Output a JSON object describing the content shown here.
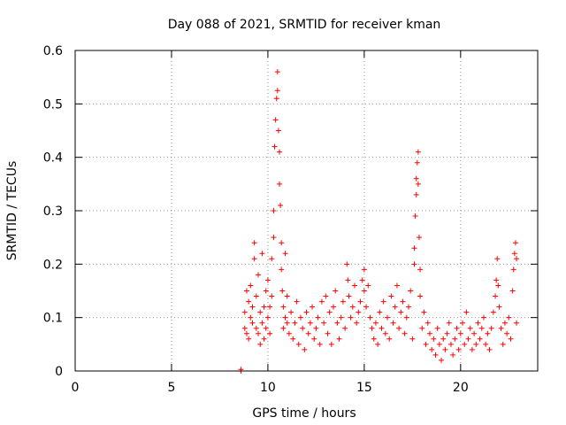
{
  "chart_data": {
    "type": "scatter",
    "title": "Day 088 of 2021, SRMTID for receiver kman",
    "xlabel": "GPS time / hours",
    "ylabel": "SRMTID / TECUs",
    "xlim": [
      0,
      24
    ],
    "ylim": [
      0,
      0.6
    ],
    "x_ticks": [
      0,
      5,
      10,
      15,
      20
    ],
    "x_tick_labels": [
      "0",
      "5",
      "10",
      "15",
      "20"
    ],
    "y_ticks": [
      0,
      0.1,
      0.2,
      0.3,
      0.4,
      0.5,
      0.6
    ],
    "y_tick_labels": [
      "0",
      "0.1",
      "0.2",
      "0.3",
      "0.4",
      "0.5",
      "0.6"
    ],
    "grid": true,
    "marker": "+",
    "series": [
      {
        "name": "SRMTID",
        "color": "#ff0000",
        "points": [
          [
            8.6,
            0.0
          ],
          [
            8.6,
            0.003
          ],
          [
            8.8,
            0.08
          ],
          [
            8.8,
            0.11
          ],
          [
            8.9,
            0.15
          ],
          [
            8.9,
            0.07
          ],
          [
            9.0,
            0.13
          ],
          [
            9.0,
            0.06
          ],
          [
            9.1,
            0.1
          ],
          [
            9.1,
            0.16
          ],
          [
            9.2,
            0.09
          ],
          [
            9.2,
            0.12
          ],
          [
            9.3,
            0.24
          ],
          [
            9.3,
            0.21
          ],
          [
            9.4,
            0.08
          ],
          [
            9.4,
            0.14
          ],
          [
            9.5,
            0.18
          ],
          [
            9.5,
            0.07
          ],
          [
            9.6,
            0.11
          ],
          [
            9.6,
            0.05
          ],
          [
            9.7,
            0.22
          ],
          [
            9.7,
            0.09
          ],
          [
            9.8,
            0.06
          ],
          [
            9.8,
            0.12
          ],
          [
            9.9,
            0.15
          ],
          [
            9.9,
            0.08
          ],
          [
            10.0,
            0.1
          ],
          [
            10.0,
            0.17
          ],
          [
            10.1,
            0.07
          ],
          [
            10.1,
            0.12
          ],
          [
            10.2,
            0.14
          ],
          [
            10.2,
            0.21
          ],
          [
            10.3,
            0.25
          ],
          [
            10.3,
            0.3
          ],
          [
            10.35,
            0.42
          ],
          [
            10.4,
            0.47
          ],
          [
            10.45,
            0.51
          ],
          [
            10.5,
            0.56
          ],
          [
            10.5,
            0.525
          ],
          [
            10.55,
            0.45
          ],
          [
            10.6,
            0.41
          ],
          [
            10.6,
            0.35
          ],
          [
            10.65,
            0.31
          ],
          [
            10.7,
            0.24
          ],
          [
            10.7,
            0.19
          ],
          [
            10.75,
            0.15
          ],
          [
            10.8,
            0.12
          ],
          [
            10.8,
            0.08
          ],
          [
            10.9,
            0.22
          ],
          [
            10.9,
            0.1
          ],
          [
            11.0,
            0.09
          ],
          [
            11.0,
            0.14
          ],
          [
            11.1,
            0.07
          ],
          [
            11.2,
            0.11
          ],
          [
            11.3,
            0.06
          ],
          [
            11.4,
            0.09
          ],
          [
            11.5,
            0.13
          ],
          [
            11.6,
            0.05
          ],
          [
            11.7,
            0.1
          ],
          [
            11.8,
            0.08
          ],
          [
            11.9,
            0.04
          ],
          [
            12.0,
            0.11
          ],
          [
            12.1,
            0.07
          ],
          [
            12.2,
            0.09
          ],
          [
            12.3,
            0.12
          ],
          [
            12.4,
            0.06
          ],
          [
            12.5,
            0.08
          ],
          [
            12.6,
            0.1
          ],
          [
            12.7,
            0.05
          ],
          [
            12.8,
            0.13
          ],
          [
            12.9,
            0.09
          ],
          [
            13.0,
            0.14
          ],
          [
            13.1,
            0.07
          ],
          [
            13.2,
            0.11
          ],
          [
            13.3,
            0.05
          ],
          [
            13.4,
            0.12
          ],
          [
            13.5,
            0.15
          ],
          [
            13.6,
            0.09
          ],
          [
            13.7,
            0.06
          ],
          [
            13.8,
            0.1
          ],
          [
            13.9,
            0.13
          ],
          [
            14.0,
            0.08
          ],
          [
            14.1,
            0.2
          ],
          [
            14.15,
            0.17
          ],
          [
            14.2,
            0.14
          ],
          [
            14.3,
            0.1
          ],
          [
            14.4,
            0.12
          ],
          [
            14.5,
            0.16
          ],
          [
            14.6,
            0.09
          ],
          [
            14.7,
            0.11
          ],
          [
            14.8,
            0.13
          ],
          [
            14.9,
            0.17
          ],
          [
            15.0,
            0.19
          ],
          [
            15.0,
            0.15
          ],
          [
            15.1,
            0.12
          ],
          [
            15.2,
            0.16
          ],
          [
            15.3,
            0.1
          ],
          [
            15.4,
            0.08
          ],
          [
            15.5,
            0.06
          ],
          [
            15.6,
            0.09
          ],
          [
            15.7,
            0.05
          ],
          [
            15.8,
            0.11
          ],
          [
            15.9,
            0.08
          ],
          [
            16.0,
            0.13
          ],
          [
            16.1,
            0.07
          ],
          [
            16.2,
            0.1
          ],
          [
            16.3,
            0.06
          ],
          [
            16.4,
            0.14
          ],
          [
            16.5,
            0.09
          ],
          [
            16.6,
            0.12
          ],
          [
            16.7,
            0.16
          ],
          [
            16.8,
            0.08
          ],
          [
            16.9,
            0.11
          ],
          [
            17.0,
            0.13
          ],
          [
            17.1,
            0.07
          ],
          [
            17.2,
            0.1
          ],
          [
            17.3,
            0.12
          ],
          [
            17.4,
            0.15
          ],
          [
            17.5,
            0.06
          ],
          [
            17.6,
            0.2
          ],
          [
            17.6,
            0.23
          ],
          [
            17.65,
            0.29
          ],
          [
            17.7,
            0.33
          ],
          [
            17.7,
            0.36
          ],
          [
            17.75,
            0.39
          ],
          [
            17.8,
            0.41
          ],
          [
            17.8,
            0.35
          ],
          [
            17.85,
            0.25
          ],
          [
            17.9,
            0.19
          ],
          [
            17.9,
            0.14
          ],
          [
            18.0,
            0.08
          ],
          [
            18.1,
            0.11
          ],
          [
            18.2,
            0.05
          ],
          [
            18.3,
            0.09
          ],
          [
            18.4,
            0.07
          ],
          [
            18.5,
            0.04
          ],
          [
            18.6,
            0.06
          ],
          [
            18.7,
            0.03
          ],
          [
            18.8,
            0.08
          ],
          [
            18.9,
            0.05
          ],
          [
            19.0,
            0.02
          ],
          [
            19.1,
            0.06
          ],
          [
            19.2,
            0.04
          ],
          [
            19.3,
            0.07
          ],
          [
            19.4,
            0.09
          ],
          [
            19.5,
            0.05
          ],
          [
            19.6,
            0.03
          ],
          [
            19.7,
            0.06
          ],
          [
            19.8,
            0.08
          ],
          [
            19.9,
            0.04
          ],
          [
            20.0,
            0.07
          ],
          [
            20.1,
            0.09
          ],
          [
            20.2,
            0.05
          ],
          [
            20.3,
            0.11
          ],
          [
            20.4,
            0.06
          ],
          [
            20.5,
            0.08
          ],
          [
            20.6,
            0.04
          ],
          [
            20.7,
            0.07
          ],
          [
            20.8,
            0.05
          ],
          [
            20.9,
            0.09
          ],
          [
            21.0,
            0.06
          ],
          [
            21.1,
            0.08
          ],
          [
            21.2,
            0.1
          ],
          [
            21.3,
            0.05
          ],
          [
            21.4,
            0.07
          ],
          [
            21.5,
            0.04
          ],
          [
            21.6,
            0.08
          ],
          [
            21.7,
            0.11
          ],
          [
            21.8,
            0.14
          ],
          [
            21.85,
            0.17
          ],
          [
            21.9,
            0.21
          ],
          [
            21.95,
            0.16
          ],
          [
            22.0,
            0.12
          ],
          [
            22.1,
            0.08
          ],
          [
            22.2,
            0.05
          ],
          [
            22.3,
            0.09
          ],
          [
            22.4,
            0.07
          ],
          [
            22.5,
            0.1
          ],
          [
            22.6,
            0.06
          ],
          [
            22.7,
            0.15
          ],
          [
            22.75,
            0.19
          ],
          [
            22.8,
            0.22
          ],
          [
            22.85,
            0.24
          ],
          [
            22.9,
            0.21
          ],
          [
            22.9,
            0.09
          ]
        ]
      }
    ]
  }
}
